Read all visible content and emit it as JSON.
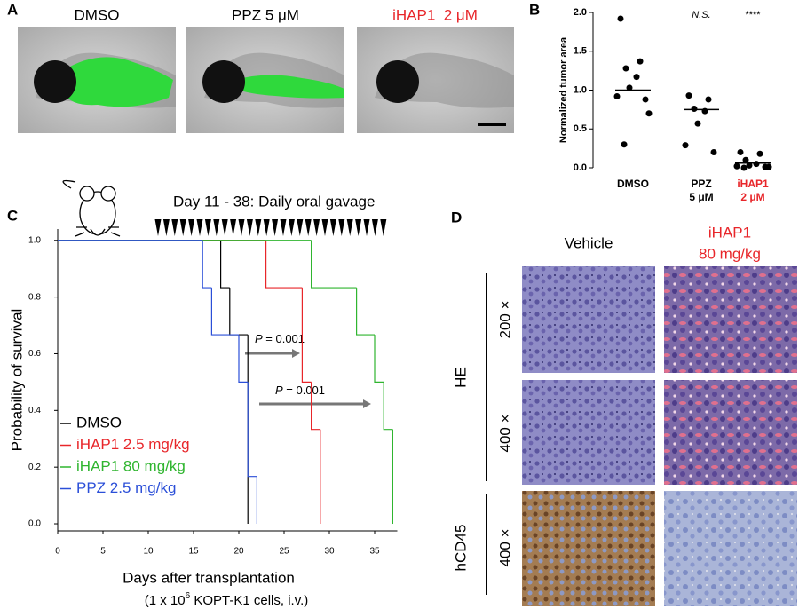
{
  "panel_labels": [
    "A",
    "B",
    "C",
    "D"
  ],
  "panel_a": {
    "titles": [
      "DMSO",
      "PPZ 5 μM",
      "iHAP1  2 μM"
    ],
    "title_colors": [
      "#000000",
      "#000000",
      "#e8262a"
    ]
  },
  "chart_data": [
    {
      "type": "dot",
      "y_label": "Normalized tumor area",
      "categories": [
        [
          "DMSO"
        ],
        [
          "PPZ",
          "5 μM"
        ],
        [
          "iHAP1",
          "2 μM"
        ]
      ],
      "category_colors": [
        "#000000",
        "#000000",
        "#e8262a"
      ],
      "values": [
        [
          1.92,
          1.37,
          1.28,
          1.17,
          1.03,
          0.92,
          0.88,
          0.7,
          0.3
        ],
        [
          0.93,
          0.88,
          0.76,
          0.73,
          0.57,
          0.29,
          0.2
        ],
        [
          0.2,
          0.18,
          0.1,
          0.05,
          0.03,
          0.02,
          0.01,
          0.01,
          0.0
        ]
      ],
      "means": [
        1.0,
        0.75,
        0.06
      ],
      "annotations": [
        null,
        "N.S.",
        "****"
      ],
      "ylim": [
        0,
        2.0
      ],
      "yticks": [
        {
          "value": 0,
          "label": "0.0"
        },
        {
          "value": 0.5,
          "label": "0.5"
        },
        {
          "value": 1.0,
          "label": "1.0"
        },
        {
          "value": 1.5,
          "label": "1.5"
        },
        {
          "value": 2.0,
          "label": "2.0"
        }
      ]
    },
    {
      "type": "step",
      "title": "Day 11 - 38: Daily oral gavage",
      "x_label": "Days after transplantation",
      "x_note": [
        "(1 x 10",
        "6",
        " KOPT-K1 cells, i.v.)"
      ],
      "y_label": "Probability of survival",
      "p_values": [
        [
          "P",
          " = 0.001"
        ],
        [
          "P",
          " = 0.001"
        ]
      ],
      "series": [
        {
          "name": "DMSO",
          "color": "#000000",
          "x": [
            0,
            18,
            19,
            21
          ],
          "values": [
            1.0,
            0.833,
            0.667,
            0
          ]
        },
        {
          "name": "iHAP1 2.5 mg/kg",
          "color": "#e8262a",
          "x": [
            0,
            23,
            27,
            28,
            29
          ],
          "values": [
            1.0,
            0.833,
            0.5,
            0.333,
            0
          ]
        },
        {
          "name": "iHAP1 80 mg/kg",
          "color": "#2fb52f",
          "x": [
            0,
            28,
            33,
            35,
            36,
            37
          ],
          "values": [
            1.0,
            0.833,
            0.667,
            0.5,
            0.333,
            0
          ]
        },
        {
          "name": "PPZ 2.5 mg/kg",
          "color": "#2b4fd8",
          "x": [
            0,
            16,
            17,
            20,
            21,
            22
          ],
          "values": [
            1.0,
            0.833,
            0.667,
            0.5,
            0.167,
            0
          ]
        }
      ],
      "xlim": [
        0,
        37.5
      ],
      "xticks": [
        0,
        5,
        10,
        15,
        20,
        25,
        30,
        35
      ],
      "ylim": [
        -0.025,
        1.04
      ],
      "yticks": [
        {
          "value": 0,
          "label": "0.0"
        },
        {
          "value": 0.2,
          "label": "0.2"
        },
        {
          "value": 0.4,
          "label": "0.4"
        },
        {
          "value": 0.6,
          "label": "0.6"
        },
        {
          "value": 0.8,
          "label": "0.8"
        },
        {
          "value": 1.0,
          "label": "1.0"
        }
      ]
    }
  ],
  "panel_d": {
    "column_titles": [
      [
        "Vehicle"
      ],
      [
        "iHAP1",
        "80 mg/kg"
      ]
    ],
    "column_colors": [
      "#000000",
      "#e8262a"
    ],
    "stain_labels": [
      "HE",
      "hCD45"
    ],
    "magnifications": [
      "200 ×",
      "400 ×",
      "400 ×"
    ]
  }
}
